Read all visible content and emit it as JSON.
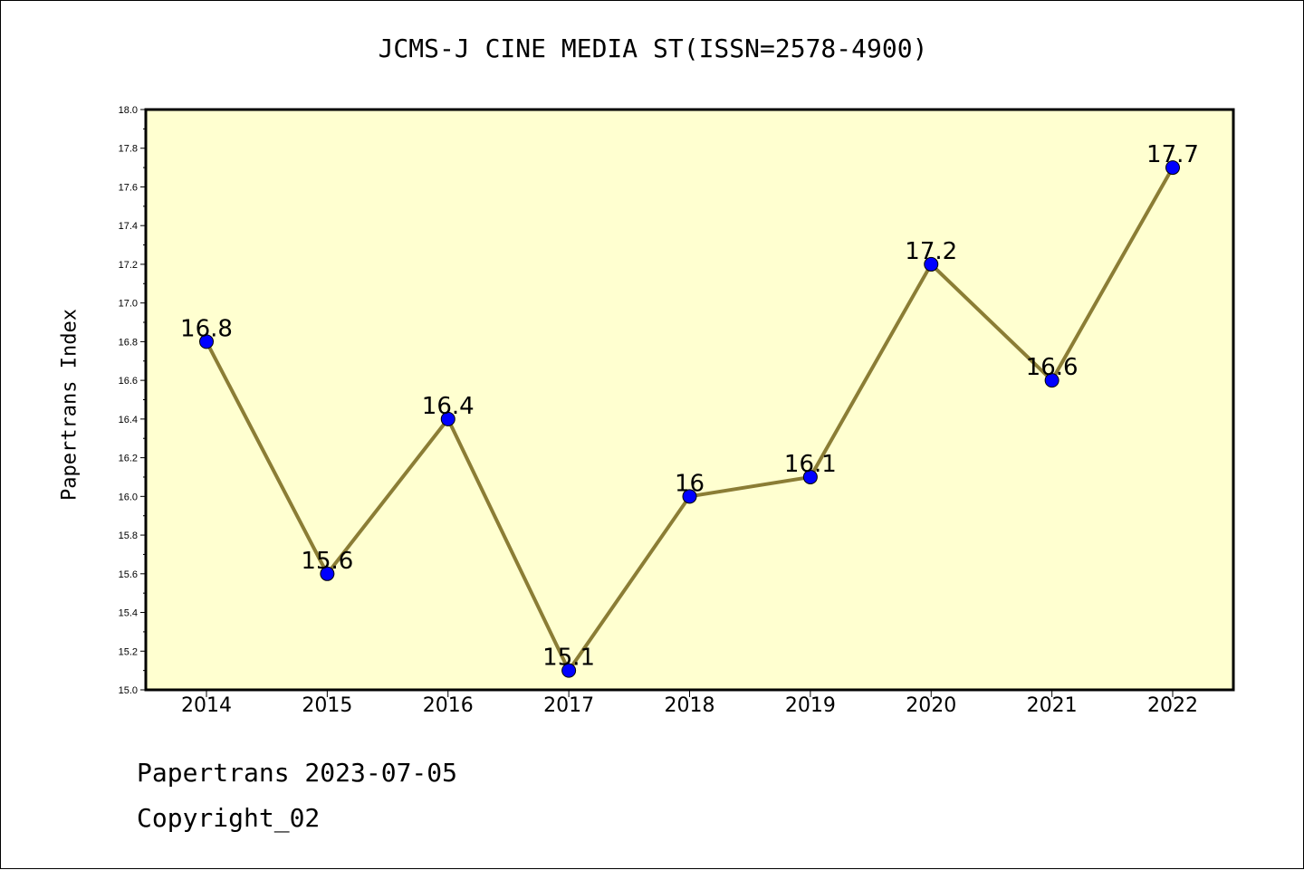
{
  "chart_data": {
    "type": "line",
    "title": "JCMS-J CINE MEDIA ST(ISSN=2578-4900)",
    "xlabel": "",
    "ylabel": "Papertrans Index",
    "categories": [
      "2014",
      "2015",
      "2016",
      "2017",
      "2018",
      "2019",
      "2020",
      "2021",
      "2022"
    ],
    "series": [
      {
        "values": [
          16.8,
          15.6,
          16.4,
          15.1,
          16.0,
          16.1,
          17.2,
          16.6,
          17.7
        ],
        "data_labels": [
          "16.8",
          "15.6",
          "16.4",
          "15.1",
          "16",
          "16.1",
          "17.2",
          "16.6",
          "17.7"
        ]
      }
    ],
    "ylim": [
      15.0,
      18.0
    ],
    "yticks": [
      "15.0",
      "15.2",
      "15.4",
      "15.6",
      "15.8",
      "16.0",
      "16.2",
      "16.4",
      "16.6",
      "16.8",
      "17.0",
      "17.2",
      "17.4",
      "17.6",
      "17.8",
      "18.0"
    ],
    "grid": false,
    "colors": {
      "plot_background": "#FFFFD0",
      "line": "#8B7D35",
      "marker": "#0000FF"
    }
  },
  "footer": {
    "line1": "Papertrans 2023-07-05",
    "line2": "Copyright_02"
  }
}
